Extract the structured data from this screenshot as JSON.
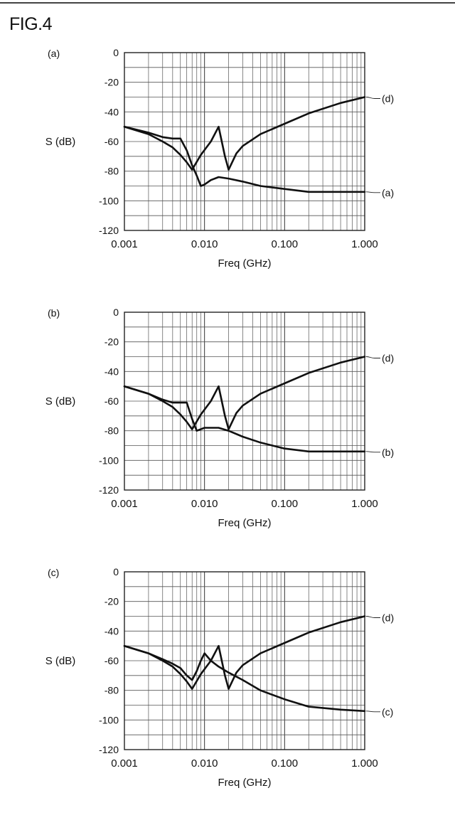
{
  "figure_title": "FIG.4",
  "chart_data": [
    {
      "type": "line",
      "panel_label": "(a)",
      "xlabel": "Freq (GHz)",
      "ylabel": "S (dB)",
      "x_scale": "log",
      "xlim": [
        0.001,
        1.0
      ],
      "ylim": [
        -120,
        0
      ],
      "x_ticks": [
        "0.001",
        "0.010",
        "0.100",
        "1.000"
      ],
      "y_ticks": [
        "0",
        "-20",
        "-40",
        "-60",
        "-80",
        "-100",
        "-120"
      ],
      "grid": true,
      "series": [
        {
          "name": "(d)",
          "x": [
            0.001,
            0.002,
            0.003,
            0.004,
            0.005,
            0.006,
            0.007,
            0.009,
            0.012,
            0.015,
            0.018,
            0.02,
            0.025,
            0.03,
            0.05,
            0.1,
            0.2,
            0.5,
            1.0
          ],
          "y": [
            -50,
            -55,
            -60,
            -64,
            -69,
            -74,
            -79,
            -69,
            -60,
            -50,
            -70,
            -79,
            -68,
            -63,
            -55,
            -48,
            -41,
            -34,
            -30
          ]
        },
        {
          "name": "(a)",
          "x": [
            0.001,
            0.002,
            0.003,
            0.004,
            0.005,
            0.006,
            0.007,
            0.008,
            0.009,
            0.01,
            0.012,
            0.015,
            0.02,
            0.03,
            0.05,
            0.1,
            0.2,
            0.5,
            1.0
          ],
          "y": [
            -50,
            -54,
            -57,
            -58,
            -58,
            -66,
            -76,
            -83,
            -90,
            -89,
            -86,
            -84,
            -85,
            -87,
            -90,
            -92,
            -94,
            -94,
            -94
          ]
        }
      ]
    },
    {
      "type": "line",
      "panel_label": "(b)",
      "xlabel": "Freq (GHz)",
      "ylabel": "S (dB)",
      "x_scale": "log",
      "xlim": [
        0.001,
        1.0
      ],
      "ylim": [
        -120,
        0
      ],
      "x_ticks": [
        "0.001",
        "0.010",
        "0.100",
        "1.000"
      ],
      "y_ticks": [
        "0",
        "-20",
        "-40",
        "-60",
        "-80",
        "-100",
        "-120"
      ],
      "grid": true,
      "series": [
        {
          "name": "(d)",
          "x": [
            0.001,
            0.002,
            0.003,
            0.004,
            0.005,
            0.006,
            0.007,
            0.009,
            0.012,
            0.015,
            0.018,
            0.02,
            0.025,
            0.03,
            0.05,
            0.1,
            0.2,
            0.5,
            1.0
          ],
          "y": [
            -50,
            -55,
            -60,
            -64,
            -69,
            -74,
            -79,
            -69,
            -60,
            -50,
            -70,
            -79,
            -68,
            -63,
            -55,
            -48,
            -41,
            -34,
            -30
          ]
        },
        {
          "name": "(b)",
          "x": [
            0.001,
            0.002,
            0.003,
            0.004,
            0.005,
            0.006,
            0.007,
            0.008,
            0.01,
            0.015,
            0.02,
            0.03,
            0.05,
            0.1,
            0.2,
            0.5,
            1.0
          ],
          "y": [
            -50,
            -55,
            -59,
            -61,
            -61,
            -61,
            -72,
            -80,
            -78,
            -78,
            -80,
            -84,
            -88,
            -92,
            -94,
            -94,
            -94
          ]
        }
      ]
    },
    {
      "type": "line",
      "panel_label": "(c)",
      "xlabel": "Freq (GHz)",
      "ylabel": "S (dB)",
      "x_scale": "log",
      "xlim": [
        0.001,
        1.0
      ],
      "ylim": [
        -120,
        0
      ],
      "x_ticks": [
        "0.001",
        "0.010",
        "0.100",
        "1.000"
      ],
      "y_ticks": [
        "0",
        "-20",
        "-40",
        "-60",
        "-80",
        "-100",
        "-120"
      ],
      "grid": true,
      "series": [
        {
          "name": "(d)",
          "x": [
            0.001,
            0.002,
            0.003,
            0.004,
            0.005,
            0.006,
            0.007,
            0.009,
            0.012,
            0.015,
            0.018,
            0.02,
            0.025,
            0.03,
            0.05,
            0.1,
            0.2,
            0.5,
            1.0
          ],
          "y": [
            -50,
            -55,
            -60,
            -64,
            -69,
            -74,
            -79,
            -69,
            -60,
            -50,
            -70,
            -79,
            -68,
            -63,
            -55,
            -48,
            -41,
            -34,
            -30
          ]
        },
        {
          "name": "(c)",
          "x": [
            0.001,
            0.002,
            0.003,
            0.004,
            0.005,
            0.006,
            0.007,
            0.008,
            0.009,
            0.01,
            0.012,
            0.015,
            0.02,
            0.03,
            0.05,
            0.1,
            0.2,
            0.5,
            1.0
          ],
          "y": [
            -50,
            -55,
            -59,
            -62,
            -65,
            -70,
            -73,
            -67,
            -60,
            -55,
            -60,
            -64,
            -68,
            -73,
            -80,
            -86,
            -91,
            -93,
            -94
          ]
        }
      ]
    }
  ]
}
